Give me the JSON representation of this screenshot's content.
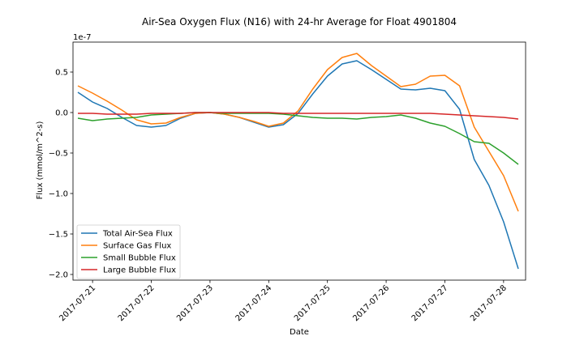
{
  "chart_data": {
    "type": "line",
    "title": "Air-Sea Oxygen Flux (N16) with 24-hr Average for Float 4901804",
    "xlabel": "Date",
    "ylabel": "Flux (mmol/m^2-s)",
    "y_offset_label": "1e-7",
    "y_scale_factor": 1e-07,
    "xlim": [
      "2017-07-20T16:00",
      "2017-07-28T09:00"
    ],
    "ylim": [
      -2.07,
      0.87
    ],
    "x_ticks": [
      "2017-07-21",
      "2017-07-22",
      "2017-07-23",
      "2017-07-24",
      "2017-07-25",
      "2017-07-26",
      "2017-07-27",
      "2017-07-28"
    ],
    "y_ticks": [
      0.5,
      0.0,
      -0.5,
      -1.0,
      -1.5,
      -2.0
    ],
    "y_tick_labels": [
      "0.5",
      "0.0",
      "−0.5",
      "−1.0",
      "−1.5",
      "−2.0"
    ],
    "grid": false,
    "legend_position": "lower-left",
    "x": [
      "2017-07-20T18:00",
      "2017-07-21T00:00",
      "2017-07-21T06:00",
      "2017-07-21T12:00",
      "2017-07-21T18:00",
      "2017-07-22T00:00",
      "2017-07-22T06:00",
      "2017-07-22T12:00",
      "2017-07-22T18:00",
      "2017-07-23T00:00",
      "2017-07-23T06:00",
      "2017-07-23T12:00",
      "2017-07-23T18:00",
      "2017-07-24T00:00",
      "2017-07-24T06:00",
      "2017-07-24T12:00",
      "2017-07-24T18:00",
      "2017-07-25T00:00",
      "2017-07-25T06:00",
      "2017-07-25T12:00",
      "2017-07-25T18:00",
      "2017-07-26T00:00",
      "2017-07-26T06:00",
      "2017-07-26T12:00",
      "2017-07-26T18:00",
      "2017-07-27T00:00",
      "2017-07-27T06:00",
      "2017-07-27T12:00",
      "2017-07-27T18:00",
      "2017-07-28T00:00",
      "2017-07-28T06:00"
    ],
    "series": [
      {
        "name": "Total Air-Sea Flux",
        "color": "#1f77b4",
        "values": [
          0.25,
          0.13,
          0.05,
          -0.06,
          -0.16,
          -0.18,
          -0.16,
          -0.07,
          -0.01,
          0.0,
          -0.02,
          -0.06,
          -0.12,
          -0.18,
          -0.15,
          -0.01,
          0.23,
          0.45,
          0.6,
          0.64,
          0.53,
          0.41,
          0.29,
          0.28,
          0.3,
          0.27,
          0.04,
          -0.58,
          -0.9,
          -1.35,
          -1.93
        ]
      },
      {
        "name": "Surface Gas Flux",
        "color": "#ff7f0e",
        "values": [
          0.33,
          0.24,
          0.14,
          0.03,
          -0.09,
          -0.14,
          -0.13,
          -0.06,
          -0.01,
          0.0,
          -0.02,
          -0.06,
          -0.11,
          -0.17,
          -0.13,
          0.02,
          0.29,
          0.53,
          0.68,
          0.73,
          0.58,
          0.45,
          0.32,
          0.35,
          0.45,
          0.46,
          0.33,
          -0.18,
          -0.48,
          -0.78,
          -1.22
        ]
      },
      {
        "name": "Small Bubble Flux",
        "color": "#2ca02c",
        "values": [
          -0.07,
          -0.1,
          -0.08,
          -0.07,
          -0.06,
          -0.03,
          -0.02,
          -0.01,
          0.0,
          0.0,
          -0.01,
          -0.01,
          -0.01,
          -0.01,
          -0.02,
          -0.04,
          -0.06,
          -0.07,
          -0.07,
          -0.08,
          -0.06,
          -0.05,
          -0.03,
          -0.07,
          -0.13,
          -0.17,
          -0.26,
          -0.36,
          -0.38,
          -0.5,
          -0.64
        ]
      },
      {
        "name": "Large Bubble Flux",
        "color": "#d62728",
        "values": [
          -0.01,
          -0.01,
          -0.02,
          -0.02,
          -0.02,
          -0.01,
          -0.01,
          -0.01,
          0.0,
          0.0,
          0.0,
          0.0,
          0.0,
          0.0,
          -0.01,
          -0.01,
          -0.01,
          -0.01,
          -0.01,
          -0.01,
          -0.01,
          -0.01,
          -0.01,
          -0.01,
          -0.01,
          -0.02,
          -0.03,
          -0.04,
          -0.05,
          -0.06,
          -0.08
        ]
      }
    ]
  }
}
